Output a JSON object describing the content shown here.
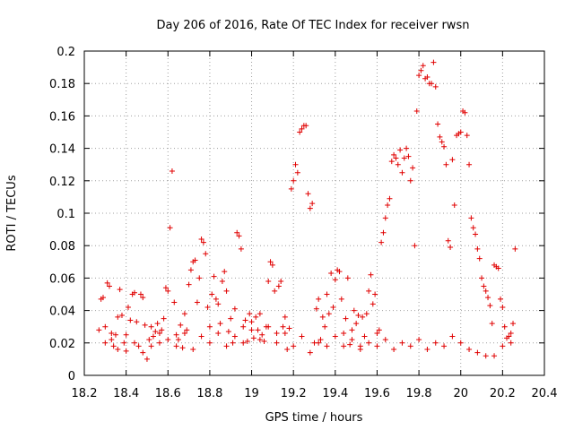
{
  "chart_data": {
    "type": "scatter",
    "title": "Day 206 of 2016, Rate Of TEC Index for receiver rwsn",
    "xlabel": "GPS time / hours",
    "ylabel": "ROTI / TECUs",
    "xlim": [
      18.2,
      20.4
    ],
    "ylim": [
      0,
      0.2
    ],
    "grid": true,
    "marker": "+",
    "color": "#e00000",
    "x_ticks": [
      "18.2",
      "18.4",
      "18.6",
      "18.8",
      "19",
      "19.2",
      "19.4",
      "19.6",
      "19.8",
      "20",
      "20.2",
      "20.4"
    ],
    "y_ticks": [
      "0",
      "0.02",
      "0.04",
      "0.06",
      "0.08",
      "0.1",
      "0.12",
      "0.14",
      "0.16",
      "0.18",
      "0.2"
    ],
    "series": [
      {
        "name": "ROTI",
        "points": [
          [
            18.27,
            0.028
          ],
          [
            18.28,
            0.047
          ],
          [
            18.29,
            0.048
          ],
          [
            18.3,
            0.03
          ],
          [
            18.31,
            0.057
          ],
          [
            18.32,
            0.055
          ],
          [
            18.33,
            0.022
          ],
          [
            18.34,
            0.018
          ],
          [
            18.35,
            0.025
          ],
          [
            18.36,
            0.036
          ],
          [
            18.37,
            0.053
          ],
          [
            18.38,
            0.037
          ],
          [
            18.39,
            0.02
          ],
          [
            18.4,
            0.015
          ],
          [
            18.41,
            0.042
          ],
          [
            18.42,
            0.034
          ],
          [
            18.43,
            0.05
          ],
          [
            18.44,
            0.051
          ],
          [
            18.45,
            0.033
          ],
          [
            18.46,
            0.018
          ],
          [
            18.47,
            0.05
          ],
          [
            18.48,
            0.048
          ],
          [
            18.49,
            0.031
          ],
          [
            18.5,
            0.01
          ],
          [
            18.51,
            0.022
          ],
          [
            18.52,
            0.03
          ],
          [
            18.53,
            0.024
          ],
          [
            18.54,
            0.027
          ],
          [
            18.55,
            0.032
          ],
          [
            18.56,
            0.02
          ],
          [
            18.57,
            0.028
          ],
          [
            18.58,
            0.035
          ],
          [
            18.59,
            0.054
          ],
          [
            18.6,
            0.052
          ],
          [
            18.61,
            0.091
          ],
          [
            18.62,
            0.126
          ],
          [
            18.63,
            0.045
          ],
          [
            18.64,
            0.025
          ],
          [
            18.65,
            0.022
          ],
          [
            18.66,
            0.031
          ],
          [
            18.67,
            0.017
          ],
          [
            18.68,
            0.038
          ],
          [
            18.69,
            0.028
          ],
          [
            18.7,
            0.056
          ],
          [
            18.71,
            0.065
          ],
          [
            18.72,
            0.07
          ],
          [
            18.73,
            0.071
          ],
          [
            18.74,
            0.045
          ],
          [
            18.75,
            0.06
          ],
          [
            18.76,
            0.084
          ],
          [
            18.77,
            0.082
          ],
          [
            18.78,
            0.075
          ],
          [
            18.79,
            0.042
          ],
          [
            18.8,
            0.03
          ],
          [
            18.81,
            0.05
          ],
          [
            18.82,
            0.061
          ],
          [
            18.83,
            0.047
          ],
          [
            18.84,
            0.044
          ],
          [
            18.85,
            0.032
          ],
          [
            18.86,
            0.058
          ],
          [
            18.87,
            0.064
          ],
          [
            18.88,
            0.052
          ],
          [
            18.89,
            0.027
          ],
          [
            18.9,
            0.035
          ],
          [
            18.91,
            0.02
          ],
          [
            18.92,
            0.041
          ],
          [
            18.93,
            0.088
          ],
          [
            18.94,
            0.086
          ],
          [
            18.95,
            0.078
          ],
          [
            18.96,
            0.03
          ],
          [
            18.97,
            0.034
          ],
          [
            18.98,
            0.021
          ],
          [
            18.99,
            0.038
          ],
          [
            19.0,
            0.033
          ],
          [
            19.01,
            0.023
          ],
          [
            19.02,
            0.036
          ],
          [
            19.03,
            0.028
          ],
          [
            19.04,
            0.038
          ],
          [
            19.05,
            0.025
          ],
          [
            19.06,
            0.021
          ],
          [
            19.07,
            0.03
          ],
          [
            19.08,
            0.058
          ],
          [
            19.09,
            0.07
          ],
          [
            19.1,
            0.068
          ],
          [
            19.11,
            0.052
          ],
          [
            19.12,
            0.026
          ],
          [
            19.13,
            0.055
          ],
          [
            19.14,
            0.058
          ],
          [
            19.15,
            0.03
          ],
          [
            19.16,
            0.036
          ],
          [
            19.17,
            0.016
          ],
          [
            19.18,
            0.029
          ],
          [
            19.19,
            0.115
          ],
          [
            19.2,
            0.12
          ],
          [
            19.21,
            0.13
          ],
          [
            19.22,
            0.125
          ],
          [
            19.23,
            0.15
          ],
          [
            19.24,
            0.152
          ],
          [
            19.25,
            0.154
          ],
          [
            19.26,
            0.154
          ],
          [
            19.27,
            0.112
          ],
          [
            19.28,
            0.103
          ],
          [
            19.29,
            0.106
          ],
          [
            19.3,
            0.02
          ],
          [
            19.31,
            0.041
          ],
          [
            19.32,
            0.047
          ],
          [
            19.33,
            0.022
          ],
          [
            19.34,
            0.036
          ],
          [
            19.35,
            0.03
          ],
          [
            19.36,
            0.05
          ],
          [
            19.37,
            0.038
          ],
          [
            19.38,
            0.063
          ],
          [
            19.39,
            0.042
          ],
          [
            19.4,
            0.059
          ],
          [
            19.41,
            0.065
          ],
          [
            19.42,
            0.064
          ],
          [
            19.43,
            0.047
          ],
          [
            19.44,
            0.026
          ],
          [
            19.45,
            0.035
          ],
          [
            19.46,
            0.06
          ],
          [
            19.47,
            0.019
          ],
          [
            19.48,
            0.028
          ],
          [
            19.49,
            0.04
          ],
          [
            19.5,
            0.032
          ],
          [
            19.51,
            0.037
          ],
          [
            19.52,
            0.018
          ],
          [
            19.53,
            0.036
          ],
          [
            19.54,
            0.024
          ],
          [
            19.55,
            0.038
          ],
          [
            19.56,
            0.052
          ],
          [
            19.57,
            0.062
          ],
          [
            19.58,
            0.044
          ],
          [
            19.59,
            0.05
          ],
          [
            19.6,
            0.026
          ],
          [
            19.61,
            0.028
          ],
          [
            19.62,
            0.082
          ],
          [
            19.63,
            0.088
          ],
          [
            19.64,
            0.097
          ],
          [
            19.65,
            0.105
          ],
          [
            19.66,
            0.109
          ],
          [
            19.67,
            0.132
          ],
          [
            19.68,
            0.136
          ],
          [
            19.69,
            0.134
          ],
          [
            19.7,
            0.13
          ],
          [
            19.71,
            0.139
          ],
          [
            19.72,
            0.125
          ],
          [
            19.73,
            0.134
          ],
          [
            19.74,
            0.14
          ],
          [
            19.75,
            0.135
          ],
          [
            19.76,
            0.12
          ],
          [
            19.77,
            0.128
          ],
          [
            19.78,
            0.08
          ],
          [
            19.79,
            0.163
          ],
          [
            19.8,
            0.185
          ],
          [
            19.81,
            0.188
          ],
          [
            19.82,
            0.191
          ],
          [
            19.83,
            0.183
          ],
          [
            19.84,
            0.184
          ],
          [
            19.85,
            0.18
          ],
          [
            19.86,
            0.18
          ],
          [
            19.87,
            0.193
          ],
          [
            19.88,
            0.178
          ],
          [
            19.89,
            0.155
          ],
          [
            19.9,
            0.147
          ],
          [
            19.91,
            0.144
          ],
          [
            19.92,
            0.141
          ],
          [
            19.93,
            0.13
          ],
          [
            19.94,
            0.083
          ],
          [
            19.95,
            0.079
          ],
          [
            19.96,
            0.133
          ],
          [
            19.97,
            0.105
          ],
          [
            19.98,
            0.148
          ],
          [
            19.99,
            0.149
          ],
          [
            20.0,
            0.15
          ],
          [
            20.01,
            0.163
          ],
          [
            20.02,
            0.162
          ],
          [
            20.03,
            0.148
          ],
          [
            20.04,
            0.13
          ],
          [
            20.05,
            0.097
          ],
          [
            20.06,
            0.091
          ],
          [
            20.07,
            0.087
          ],
          [
            20.08,
            0.078
          ],
          [
            20.09,
            0.072
          ],
          [
            20.1,
            0.06
          ],
          [
            20.11,
            0.055
          ],
          [
            20.12,
            0.052
          ],
          [
            20.13,
            0.048
          ],
          [
            20.14,
            0.043
          ],
          [
            20.15,
            0.032
          ],
          [
            20.16,
            0.068
          ],
          [
            20.17,
            0.067
          ],
          [
            20.18,
            0.066
          ],
          [
            20.19,
            0.047
          ],
          [
            20.2,
            0.042
          ],
          [
            20.21,
            0.03
          ],
          [
            20.22,
            0.023
          ],
          [
            20.23,
            0.024
          ],
          [
            20.24,
            0.026
          ],
          [
            20.25,
            0.032
          ],
          [
            20.26,
            0.078
          ],
          [
            18.3,
            0.02
          ],
          [
            18.33,
            0.026
          ],
          [
            18.36,
            0.016
          ],
          [
            18.4,
            0.025
          ],
          [
            18.44,
            0.02
          ],
          [
            18.48,
            0.014
          ],
          [
            18.52,
            0.018
          ],
          [
            18.56,
            0.026
          ],
          [
            18.6,
            0.022
          ],
          [
            18.64,
            0.018
          ],
          [
            18.68,
            0.026
          ],
          [
            18.72,
            0.016
          ],
          [
            18.76,
            0.024
          ],
          [
            18.8,
            0.02
          ],
          [
            18.84,
            0.026
          ],
          [
            18.88,
            0.018
          ],
          [
            18.92,
            0.024
          ],
          [
            18.96,
            0.02
          ],
          [
            19.0,
            0.028
          ],
          [
            19.04,
            0.022
          ],
          [
            19.08,
            0.03
          ],
          [
            19.12,
            0.02
          ],
          [
            19.16,
            0.026
          ],
          [
            19.2,
            0.018
          ],
          [
            19.24,
            0.024
          ],
          [
            19.28,
            0.014
          ],
          [
            19.32,
            0.02
          ],
          [
            19.36,
            0.018
          ],
          [
            19.4,
            0.024
          ],
          [
            19.44,
            0.018
          ],
          [
            19.48,
            0.022
          ],
          [
            19.52,
            0.016
          ],
          [
            19.56,
            0.02
          ],
          [
            19.6,
            0.018
          ],
          [
            19.64,
            0.022
          ],
          [
            19.68,
            0.016
          ],
          [
            19.72,
            0.02
          ],
          [
            19.76,
            0.018
          ],
          [
            19.8,
            0.022
          ],
          [
            19.84,
            0.016
          ],
          [
            19.88,
            0.02
          ],
          [
            19.92,
            0.018
          ],
          [
            19.96,
            0.024
          ],
          [
            20.0,
            0.02
          ],
          [
            20.04,
            0.016
          ],
          [
            20.08,
            0.014
          ],
          [
            20.12,
            0.012
          ],
          [
            20.16,
            0.012
          ],
          [
            20.2,
            0.018
          ],
          [
            20.24,
            0.02
          ]
        ]
      }
    ]
  }
}
